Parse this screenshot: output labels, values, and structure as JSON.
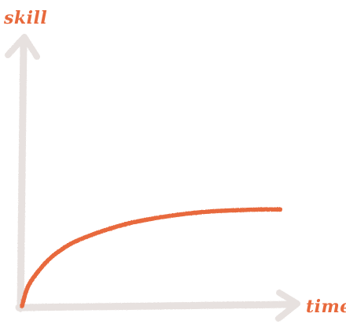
{
  "chart_data": {
    "type": "line",
    "xlabel": "time",
    "ylabel": "skill",
    "xlim": [
      0,
      1
    ],
    "ylim": [
      0,
      1
    ],
    "grid": false,
    "series": [
      {
        "x": [
          0.0,
          0.02,
          0.05,
          0.1,
          0.15,
          0.2,
          0.3,
          0.4,
          0.5,
          0.6,
          0.7,
          0.8,
          0.9,
          0.96
        ],
        "y": [
          0.0,
          0.07,
          0.12,
          0.18,
          0.22,
          0.25,
          0.29,
          0.32,
          0.34,
          0.355,
          0.365,
          0.37,
          0.373,
          0.373
        ]
      }
    ]
  },
  "colors": {
    "axis": "#e7e1df",
    "curve": "#e8693c",
    "label": "#e8693c"
  }
}
